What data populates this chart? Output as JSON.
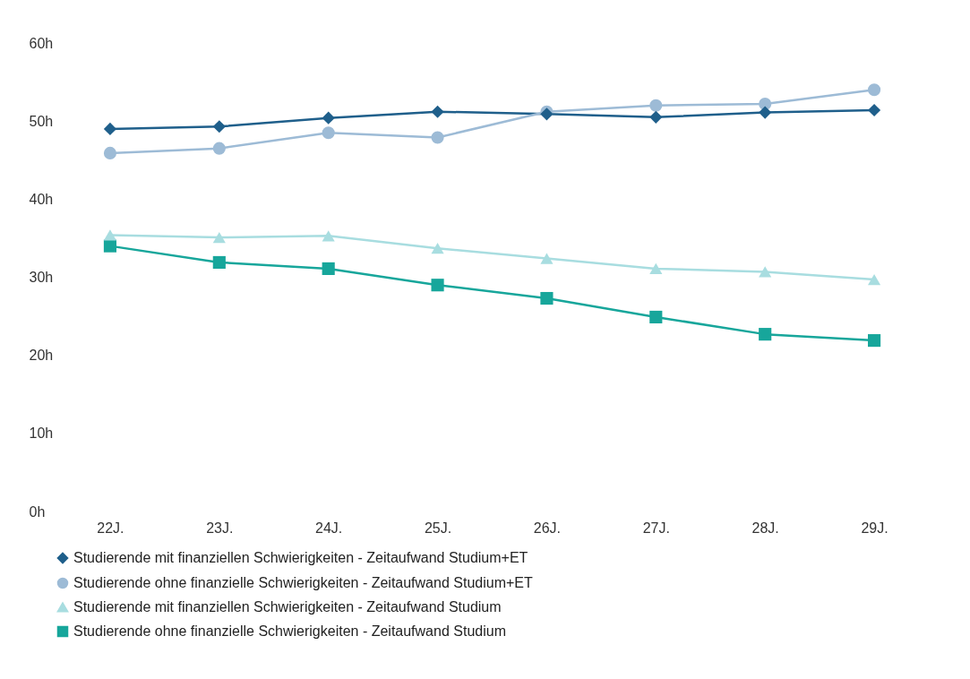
{
  "chart_data": {
    "type": "line",
    "categories": [
      "22J.",
      "23J.",
      "24J.",
      "25J.",
      "26J.",
      "27J.",
      "28J.",
      "29J."
    ],
    "series": [
      {
        "name": "Studierende mit finanziellen Schwierigkeiten - Zeitaufwand Studium+ET",
        "color": "#1f5f8b",
        "marker": "diamond",
        "values": [
          49.0,
          49.3,
          50.4,
          51.2,
          50.9,
          50.5,
          51.1,
          51.4
        ]
      },
      {
        "name": "Studierende ohne finanzielle Schwierigkeiten - Zeitaufwand Studium+ET",
        "color": "#9dbbd6",
        "marker": "circle",
        "values": [
          45.9,
          46.5,
          48.5,
          47.9,
          51.2,
          52.0,
          52.2,
          54.0
        ]
      },
      {
        "name": "Studierende mit finanziellen Schwierigkeiten - Zeitaufwand Studium",
        "color": "#a8dde0",
        "marker": "triangle",
        "values": [
          35.4,
          35.1,
          35.3,
          33.7,
          32.4,
          31.1,
          30.7,
          29.7
        ]
      },
      {
        "name": "Studierende ohne finanzielle Schwierigkeiten - Zeitaufwand Studium",
        "color": "#17a69b",
        "marker": "square",
        "values": [
          34.0,
          31.9,
          31.1,
          29.0,
          27.3,
          24.9,
          22.7,
          21.9
        ]
      }
    ],
    "ylim": [
      0,
      60
    ],
    "yticks": [
      {
        "value": 0,
        "label": "0h"
      },
      {
        "value": 10,
        "label": "10h"
      },
      {
        "value": 20,
        "label": "20h"
      },
      {
        "value": 30,
        "label": "30h"
      },
      {
        "value": 40,
        "label": "40h"
      },
      {
        "value": 50,
        "label": "50h"
      },
      {
        "value": 60,
        "label": "60h"
      }
    ],
    "grid": false,
    "legend": "bottom"
  }
}
